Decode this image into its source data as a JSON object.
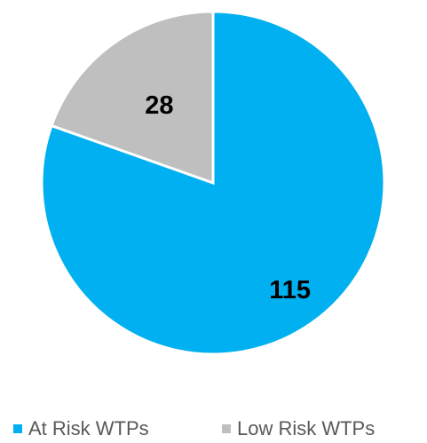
{
  "chart_data": {
    "type": "pie",
    "title": "",
    "slices": [
      {
        "label": "At Risk WTPs",
        "value": 115,
        "color": "#00B0F0"
      },
      {
        "label": "Low Risk WTPs",
        "value": 28,
        "color": "#BFBFBF"
      }
    ],
    "data_labels": [
      "115",
      "28"
    ],
    "start_angle_deg": 0,
    "direction": "clockwise",
    "legend_position": "bottom"
  },
  "legend": {
    "items": [
      {
        "label": "At Risk WTPs",
        "color": "#00B0F0"
      },
      {
        "label": "Low Risk WTPs",
        "color": "#BFBFBF"
      }
    ]
  }
}
